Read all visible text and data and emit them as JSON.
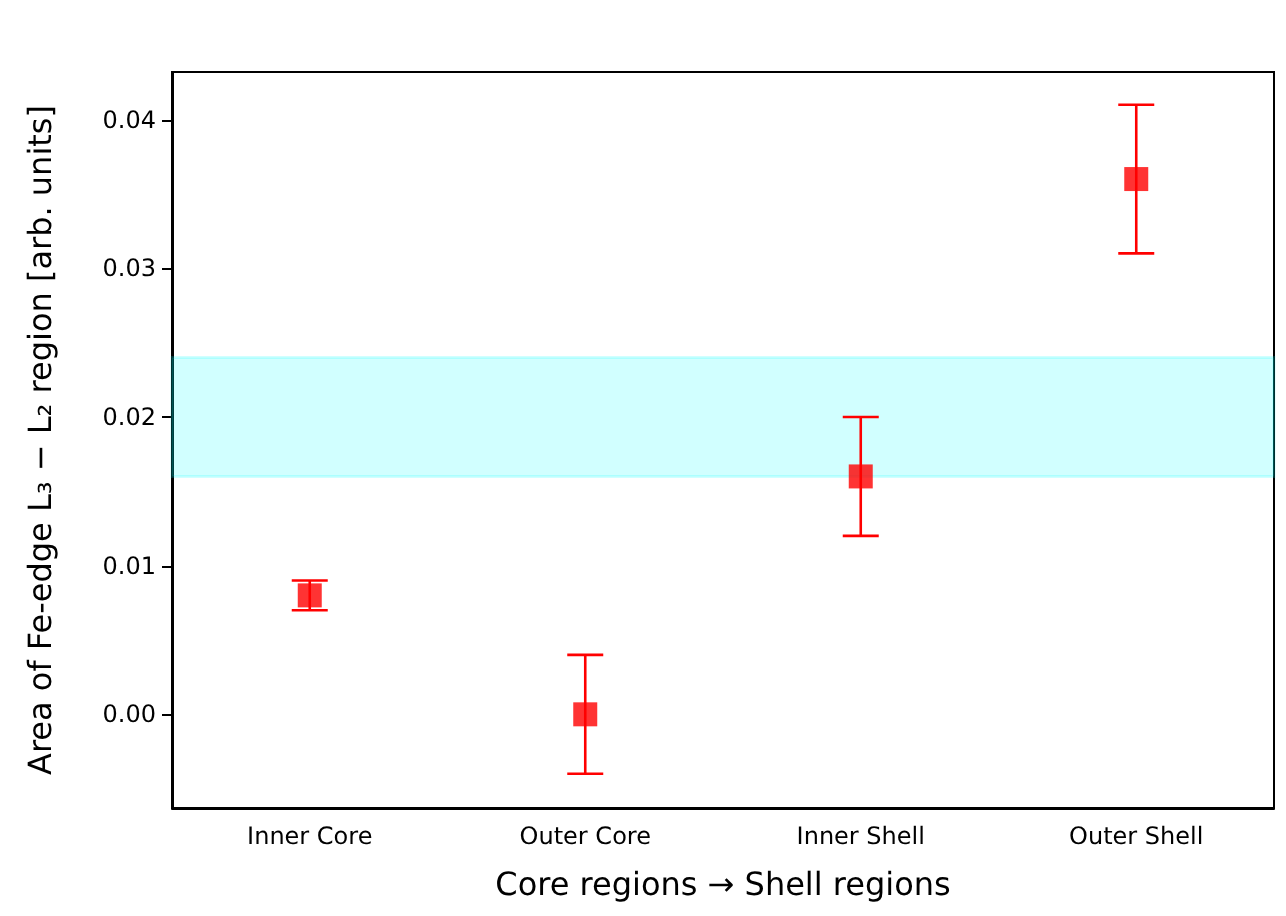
{
  "chart_data": {
    "type": "scatter",
    "xlabel": "Core regions → Shell regions",
    "ylabel": "Area of Fe-edge L₃ − L₂ region [arb. units]",
    "categories": [
      "Inner Core",
      "Outer Core",
      "Inner Shell",
      "Outer Shell"
    ],
    "series": [
      {
        "color": "#ff0000",
        "values": [
          0.008,
          0.0,
          0.016,
          0.036
        ],
        "errors": [
          0.001,
          0.004,
          0.004,
          0.005
        ]
      }
    ],
    "ylim": [
      -0.0063,
      0.0432
    ],
    "yticks": [
      {
        "value": 0,
        "label": "0.00"
      },
      {
        "value": 0.01,
        "label": "0.01"
      },
      {
        "value": 0.02,
        "label": "0.02"
      },
      {
        "value": 0.03,
        "label": "0.03"
      },
      {
        "value": 0.04,
        "label": "0.04"
      }
    ],
    "bands": [
      {
        "axis": "y",
        "from": 0.016,
        "to": 0.024,
        "color": "#00ffff"
      }
    ],
    "marker": "square",
    "grid": false
  }
}
